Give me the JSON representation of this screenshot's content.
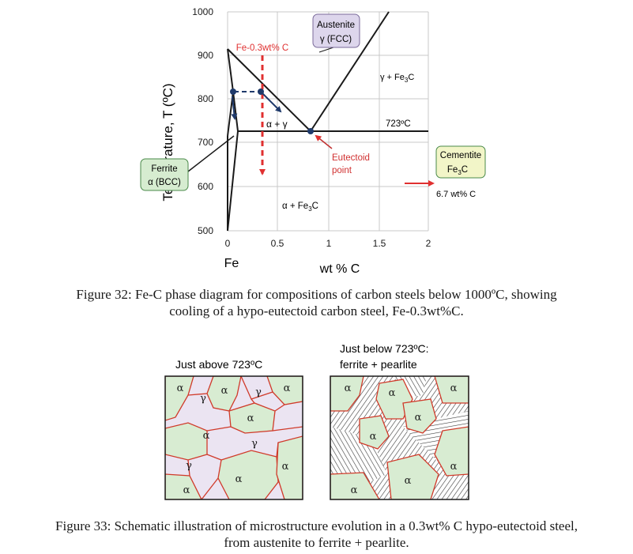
{
  "figure32": {
    "y_axis_label": "Temperature, T (ºC)",
    "x_axis_label": "wt % C",
    "x_origin_label": "Fe",
    "y_ticks": [
      "1000",
      "900",
      "800",
      "700",
      "600",
      "500"
    ],
    "x_ticks": [
      "0",
      "0.5",
      "1",
      "1.5",
      "2"
    ],
    "austenite_line1": "Austenite",
    "austenite_line2": "γ (FCC)",
    "composition_label": "Fe-0.3wt% C",
    "gamma_fe3c": "γ + Fe",
    "alpha_gamma": "α + γ",
    "eutectoid_temp": "723ºC",
    "eutectoid_line1": "Eutectoid",
    "eutectoid_line2": "point",
    "alpha_fe3c": "α + Fe",
    "subscript_3": "3",
    "carbon": "C",
    "ferrite_line1": "Ferrite",
    "ferrite_line2": "α (BCC)",
    "cementite_line1": "Cementite",
    "cementite_line2": "Fe",
    "cementite_wt": "6.7 wt% C",
    "caption_line1": "Figure 32:   Fe-C phase diagram for compositions of carbon steels below 1000ºC, showing",
    "caption_line2": "cooling of a hypo-eutectoid carbon steel, Fe-0.3wt%C.",
    "colors": {
      "red": "#e03030",
      "navy": "#1f3a6b",
      "ferrite_box": "#d6ecd0",
      "austenite_box": "#ddd6ec",
      "cementite_box": "#f2f5c8"
    }
  },
  "figure33": {
    "left_title": "Just above 723ºC",
    "right_title_line1": "Just below 723ºC:",
    "right_title_line2": "ferrite + pearlite",
    "alpha": "α",
    "gamma": "γ",
    "caption_line1": "Figure 33: Schematic illustration of microstructure evolution in a 0.3wt% C hypo-eutectoid steel,",
    "caption_line2": "from austenite to ferrite + pearlite.",
    "colors": {
      "ferrite": "#d8ecd2",
      "austenite": "#ebe4f2",
      "boundary": "#d03a2a"
    }
  }
}
